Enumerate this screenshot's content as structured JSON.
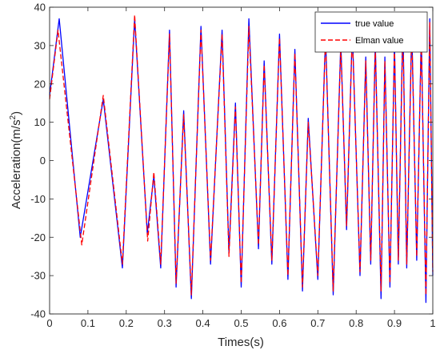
{
  "chart_data": {
    "type": "line",
    "xlabel": "Times(s)",
    "ylabel_text": "Acceleration(m/s",
    "ylabel_sup": "2",
    "ylabel_close": ")",
    "xlim": [
      0,
      1
    ],
    "ylim": [
      -40,
      40
    ],
    "xticks": [
      "0",
      "0.1",
      "0.2",
      "0.3",
      "0.4",
      "0.5",
      "0.6",
      "0.7",
      "0.8",
      "0.9",
      "1"
    ],
    "yticks": [
      "-40",
      "-30",
      "-20",
      "-10",
      "0",
      "10",
      "20",
      "30",
      "40"
    ],
    "grid": false,
    "legend_position": "top-right",
    "series": [
      {
        "name": "true value",
        "color": "#0000ff",
        "style": "solid",
        "x": [
          0,
          0.025,
          0.08,
          0.14,
          0.19,
          0.222,
          0.255,
          0.272,
          0.29,
          0.313,
          0.33,
          0.35,
          0.37,
          0.395,
          0.42,
          0.45,
          0.468,
          0.485,
          0.5,
          0.52,
          0.545,
          0.56,
          0.58,
          0.6,
          0.622,
          0.64,
          0.66,
          0.675,
          0.7,
          0.72,
          0.74,
          0.76,
          0.775,
          0.79,
          0.81,
          0.825,
          0.838,
          0.85,
          0.865,
          0.875,
          0.888,
          0.9,
          0.91,
          0.922,
          0.932,
          0.945,
          0.958,
          0.97,
          0.982,
          0.992,
          1.0
        ],
        "y": [
          17,
          37,
          -20,
          16,
          -28,
          37,
          -19,
          -4,
          -28,
          34,
          -33,
          13,
          -36,
          35,
          -27,
          34,
          -24,
          15,
          -33,
          37,
          -23,
          26,
          -27,
          33,
          -31,
          29,
          -34,
          11,
          -31,
          33,
          -35,
          31,
          -18,
          34,
          -30,
          27,
          -27,
          31,
          -36,
          27,
          -33,
          31,
          -27,
          37,
          -28,
          35,
          -26,
          33,
          -37,
          37,
          -30
        ]
      },
      {
        "name": "Elman value",
        "color": "#ff0000",
        "style": "dashed",
        "x": [
          0,
          0.022,
          0.084,
          0.14,
          0.19,
          0.222,
          0.256,
          0.272,
          0.29,
          0.313,
          0.33,
          0.35,
          0.37,
          0.395,
          0.42,
          0.45,
          0.468,
          0.485,
          0.5,
          0.52,
          0.545,
          0.56,
          0.58,
          0.6,
          0.622,
          0.64,
          0.66,
          0.675,
          0.7,
          0.72,
          0.74,
          0.76,
          0.775,
          0.79,
          0.81,
          0.825,
          0.838,
          0.85,
          0.865,
          0.875,
          0.888,
          0.9,
          0.91,
          0.922,
          0.932,
          0.945,
          0.958,
          0.97,
          0.982,
          0.992,
          1.0
        ],
        "y": [
          16,
          34,
          -22,
          17,
          -27,
          38,
          -21,
          -3,
          -27,
          33,
          -32,
          12,
          -35,
          34,
          -26,
          33,
          -25,
          14,
          -32,
          35,
          -22,
          25,
          -26,
          32,
          -30,
          28,
          -33,
          10,
          -30,
          32,
          -34,
          30,
          -17,
          33,
          -29,
          26,
          -26,
          30,
          -34,
          26,
          -32,
          30,
          -26,
          35,
          -27,
          34,
          -25,
          32,
          -35,
          36,
          -29
        ]
      }
    ]
  }
}
